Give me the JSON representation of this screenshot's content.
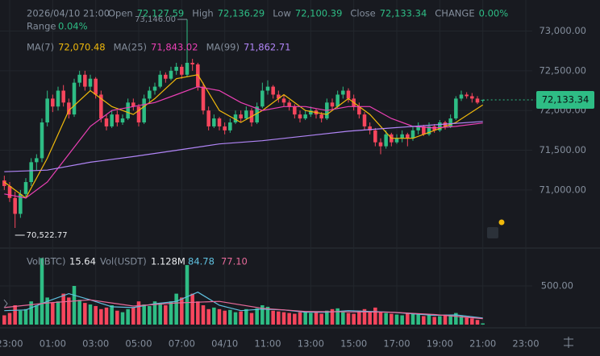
{
  "chart_data": {
    "type": "candlestick",
    "header": {
      "date": "2026/04/10 21:00",
      "fields": [
        {
          "label": "Open",
          "value": "72,127.59"
        },
        {
          "label": "High",
          "value": "72,136.29"
        },
        {
          "label": "Low",
          "value": "72,100.39"
        },
        {
          "label": "Close",
          "value": "72,133.34"
        },
        {
          "label": "CHANGE",
          "value": "0.00%"
        }
      ],
      "range_label": "Range",
      "range": "0.04%"
    },
    "up_color": "#2ebd85",
    "down_color": "#f6465d",
    "candles": [
      [
        71120,
        71180,
        71000,
        71050
      ],
      [
        71050,
        71100,
        70850,
        70900
      ],
      [
        70900,
        70980,
        70522.77,
        70700
      ],
      [
        70700,
        71000,
        70650,
        70950
      ],
      [
        70950,
        71150,
        70900,
        71100
      ],
      [
        71100,
        71400,
        71050,
        71350
      ],
      [
        71350,
        71450,
        71250,
        71400
      ],
      [
        71400,
        71900,
        71350,
        71850
      ],
      [
        71850,
        72250,
        71800,
        72150
      ],
      [
        72150,
        72200,
        71980,
        72050
      ],
      [
        72050,
        72300,
        72000,
        72250
      ],
      [
        72250,
        72320,
        72050,
        72100
      ],
      [
        72100,
        72150,
        71900,
        71950
      ],
      [
        71950,
        72400,
        71920,
        72350
      ],
      [
        72350,
        72500,
        72300,
        72450
      ],
      [
        72450,
        72500,
        72250,
        72300
      ],
      [
        72300,
        72450,
        72250,
        72400
      ],
      [
        72400,
        72420,
        72150,
        72200
      ],
      [
        72200,
        72250,
        71850,
        71900
      ],
      [
        71900,
        71950,
        71750,
        71800
      ],
      [
        71800,
        72000,
        71780,
        71950
      ],
      [
        71950,
        72000,
        71800,
        71850
      ],
      [
        71850,
        71950,
        71820,
        71900
      ],
      [
        71900,
        72150,
        71880,
        72100
      ],
      [
        72100,
        72150,
        72000,
        72050
      ],
      [
        72050,
        72080,
        71800,
        71850
      ],
      [
        71850,
        72200,
        71830,
        72150
      ],
      [
        72150,
        72300,
        72100,
        72250
      ],
      [
        72250,
        72350,
        72200,
        72300
      ],
      [
        72300,
        72500,
        72280,
        72450
      ],
      [
        72450,
        72480,
        72350,
        72400
      ],
      [
        72400,
        72550,
        72380,
        72500
      ],
      [
        72500,
        72600,
        72450,
        72550
      ],
      [
        72550,
        72580,
        72400,
        72450
      ],
      [
        72450,
        73146.0,
        72420,
        72600
      ],
      [
        72600,
        72650,
        72500,
        72580
      ],
      [
        72580,
        72600,
        72250,
        72300
      ],
      [
        72300,
        72350,
        71950,
        72000
      ],
      [
        72000,
        72050,
        71750,
        71800
      ],
      [
        71800,
        71950,
        71780,
        71900
      ],
      [
        71900,
        71920,
        71750,
        71800
      ],
      [
        71800,
        71850,
        71700,
        71750
      ],
      [
        71750,
        71900,
        71720,
        71850
      ],
      [
        71850,
        72000,
        71830,
        71950
      ],
      [
        71950,
        72000,
        71850,
        71900
      ],
      [
        71900,
        72050,
        71880,
        72000
      ],
      [
        72000,
        72030,
        71800,
        71850
      ],
      [
        71850,
        72100,
        71830,
        72050
      ],
      [
        72050,
        72350,
        72030,
        72250
      ],
      [
        72250,
        72380,
        72200,
        72300
      ],
      [
        72300,
        72320,
        72150,
        72200
      ],
      [
        72200,
        72250,
        72100,
        72150
      ],
      [
        72150,
        72200,
        72050,
        72100
      ],
      [
        72100,
        72130,
        72000,
        72050
      ],
      [
        72050,
        72080,
        71900,
        71950
      ],
      [
        71950,
        72000,
        71850,
        71900
      ],
      [
        71900,
        72000,
        71880,
        71950
      ],
      [
        71950,
        72050,
        71920,
        72000
      ],
      [
        72000,
        72020,
        71900,
        71950
      ],
      [
        71950,
        71980,
        71850,
        71900
      ],
      [
        71900,
        72150,
        71880,
        72100
      ],
      [
        72100,
        72150,
        72000,
        72050
      ],
      [
        72050,
        72250,
        72030,
        72200
      ],
      [
        72200,
        72300,
        72150,
        72250
      ],
      [
        72250,
        72280,
        72100,
        72150
      ],
      [
        72150,
        72200,
        72000,
        72050
      ],
      [
        72050,
        72100,
        71900,
        71950
      ],
      [
        71950,
        71980,
        71750,
        71800
      ],
      [
        71800,
        71850,
        71700,
        71750
      ],
      [
        71750,
        71780,
        71550,
        71600
      ],
      [
        71600,
        71650,
        71450,
        71550
      ],
      [
        71550,
        71750,
        71520,
        71700
      ],
      [
        71700,
        71720,
        71550,
        71600
      ],
      [
        71600,
        71700,
        71580,
        71650
      ],
      [
        71650,
        71750,
        71600,
        71700
      ],
      [
        71700,
        71720,
        71550,
        71650
      ],
      [
        71650,
        71800,
        71620,
        71750
      ],
      [
        71750,
        71850,
        71700,
        71800
      ],
      [
        71800,
        71820,
        71680,
        71700
      ],
      [
        71700,
        71850,
        71680,
        71800
      ],
      [
        71800,
        71830,
        71720,
        71750
      ],
      [
        71750,
        71880,
        71730,
        71850
      ],
      [
        71850,
        71870,
        71760,
        71800
      ],
      [
        71800,
        71950,
        71780,
        71900
      ],
      [
        71900,
        72180,
        71880,
        72150
      ],
      [
        72150,
        72250,
        72120,
        72200
      ],
      [
        72200,
        72230,
        72150,
        72180
      ],
      [
        72180,
        72220,
        72100,
        72150
      ],
      [
        72150,
        72180,
        72080,
        72100
      ],
      [
        72127.59,
        72136.29,
        72100.39,
        72133.34
      ]
    ],
    "xlim": [
      -0.8,
      98.2
    ],
    "xticks": [
      {
        "value": 1,
        "label": "23:00"
      },
      {
        "value": 9,
        "label": "01:00"
      },
      {
        "value": 17,
        "label": "03:00"
      },
      {
        "value": 25,
        "label": "05:00"
      },
      {
        "value": 33,
        "label": "07:00"
      },
      {
        "value": 41,
        "label": "04/10"
      },
      {
        "value": 49,
        "label": "11:00"
      },
      {
        "value": 57,
        "label": "13:00"
      },
      {
        "value": 65,
        "label": "15:00"
      },
      {
        "value": 73,
        "label": "17:00"
      },
      {
        "value": 81,
        "label": "19:00"
      },
      {
        "value": 89,
        "label": "21:00"
      },
      {
        "value": 97,
        "label": "23:00"
      }
    ],
    "ylim": [
      70300,
      73390
    ],
    "yticks": [
      {
        "value": 71000,
        "label": "71,000.00"
      },
      {
        "value": 71500,
        "label": "71,500.00"
      },
      {
        "value": 72000,
        "label": "72,000.00"
      },
      {
        "value": 72500,
        "label": "72,500.00"
      },
      {
        "value": 73000,
        "label": "73,000.00"
      }
    ],
    "price_tag": "72,133.34",
    "high_label": "73,146.00",
    "low_label": "70,522.77",
    "ma_series": [
      {
        "name": "MA(7)",
        "value_label": "72,070.48",
        "color": "#f0b90b",
        "x": [
          0,
          4,
          8,
          12,
          16,
          20,
          24,
          28,
          32,
          36,
          40,
          44,
          48,
          52,
          56,
          60,
          64,
          68,
          72,
          76,
          80,
          84,
          89
        ],
        "values": [
          71100,
          70900,
          71400,
          72000,
          72250,
          72050,
          71950,
          72150,
          72400,
          72450,
          72000,
          71850,
          72000,
          72200,
          72000,
          71950,
          72150,
          71950,
          71650,
          71650,
          71750,
          71850,
          72070.48
        ]
      },
      {
        "name": "MA(25)",
        "value_label": "71,843.02",
        "color": "#eb40b5",
        "x": [
          0,
          4,
          8,
          12,
          16,
          20,
          24,
          28,
          32,
          36,
          40,
          44,
          48,
          52,
          56,
          60,
          64,
          68,
          72,
          76,
          80,
          84,
          89
        ],
        "values": [
          70950,
          70900,
          71100,
          71450,
          71800,
          72000,
          72050,
          72100,
          72200,
          72300,
          72250,
          72100,
          72000,
          72050,
          72050,
          72000,
          72050,
          72050,
          71900,
          71800,
          71780,
          71800,
          71843.02
        ]
      },
      {
        "name": "MA(99)",
        "value_label": "71,862.71",
        "color": "#b185f7",
        "x": [
          0,
          8,
          16,
          24,
          32,
          40,
          48,
          56,
          64,
          72,
          80,
          89
        ],
        "values": [
          71230,
          71250,
          71350,
          71420,
          71500,
          71580,
          71620,
          71680,
          71740,
          71780,
          71820,
          71862.71
        ]
      }
    ],
    "volume": {
      "label": "Vol(BTC)",
      "value_label": "15.64",
      "quote_label": "Vol(USDT)",
      "quote_value": "1.128M",
      "values": [
        120,
        150,
        250,
        180,
        200,
        300,
        250,
        860,
        350,
        280,
        300,
        400,
        350,
        500,
        320,
        280,
        260,
        240,
        200,
        220,
        250,
        180,
        160,
        200,
        220,
        300,
        260,
        240,
        300,
        280,
        250,
        300,
        400,
        350,
        770,
        400,
        300,
        250,
        200,
        220,
        200,
        180,
        190,
        160,
        170,
        200,
        150,
        210,
        250,
        230,
        180,
        170,
        160,
        150,
        140,
        160,
        170,
        150,
        160,
        140,
        180,
        200,
        210,
        160,
        150,
        140,
        180,
        200,
        170,
        220,
        160,
        150,
        140,
        130,
        120,
        150,
        140,
        130,
        110,
        120,
        100,
        110,
        130,
        120,
        150,
        110,
        90,
        80,
        60,
        15.64
      ],
      "ylim": [
        0,
        1000
      ],
      "yticks": [
        {
          "value": 500,
          "label": "500.00"
        }
      ],
      "ma_series": [
        {
          "value_label": "84.78",
          "color": "#5fc1e0",
          "x": [
            0,
            4,
            8,
            12,
            16,
            20,
            24,
            28,
            32,
            36,
            40,
            44,
            48,
            52,
            56,
            60,
            64,
            68,
            72,
            76,
            80,
            84,
            89
          ],
          "values": [
            180,
            190,
            300,
            400,
            320,
            230,
            220,
            270,
            300,
            420,
            250,
            180,
            200,
            190,
            160,
            160,
            180,
            170,
            160,
            140,
            120,
            125,
            84.78
          ]
        },
        {
          "value_label": "77.10",
          "color": "#e86a9a",
          "x": [
            0,
            8,
            16,
            24,
            32,
            40,
            48,
            56,
            64,
            72,
            80,
            89
          ],
          "values": [
            220,
            280,
            320,
            240,
            280,
            300,
            210,
            170,
            165,
            160,
            130,
            77.1
          ]
        }
      ]
    }
  }
}
